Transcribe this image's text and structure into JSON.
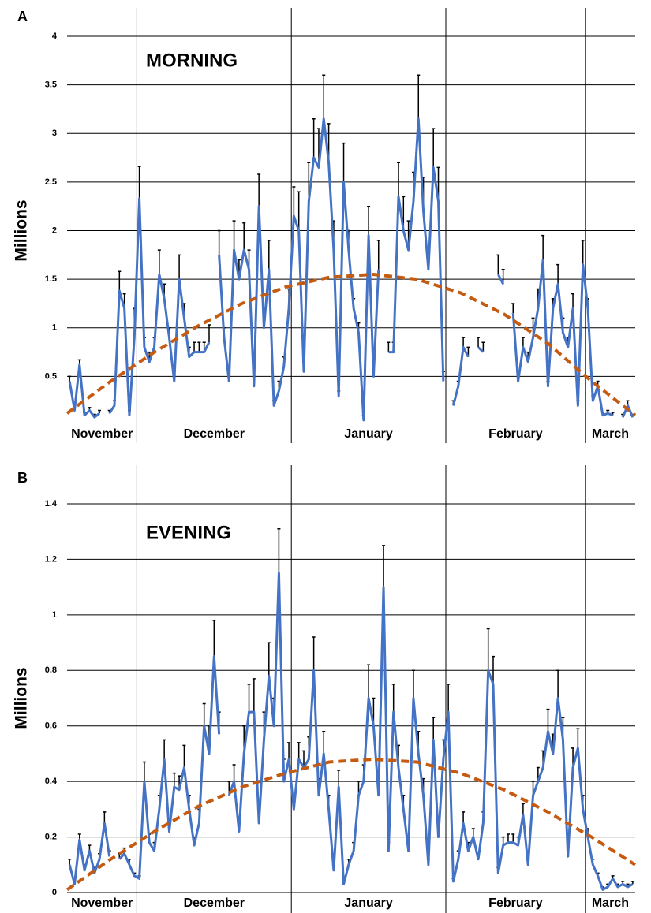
{
  "chart_data": [
    {
      "type": "line",
      "panel_label": "A",
      "title": "MORNING",
      "ylabel": "Millions",
      "ylim": [
        0,
        4
      ],
      "yticks": [
        0.5,
        1,
        1.5,
        2,
        2.5,
        3,
        3.5,
        4
      ],
      "grid": true,
      "color": "#4472c4",
      "months": [
        {
          "name": "November",
          "values": [
            0.45,
            0.15,
            0.62,
            0.1,
            0.15,
            0.08,
            0.12,
            null,
            0.12,
            0.2,
            1.38,
            1.2,
            0.1,
            0.9
          ],
          "errors": [
            0.05,
            0.05,
            0.05,
            0.03,
            0.03,
            0.03,
            0.03,
            null,
            0.03,
            0.05,
            0.2,
            0.15,
            0.05,
            0.3
          ]
        },
        {
          "name": "December",
          "values": [
            2.33,
            0.8,
            0.65,
            0.8,
            1.55,
            1.3,
            0.9,
            0.45,
            1.5,
            1.1,
            0.7,
            0.75,
            0.75,
            0.75,
            0.85,
            null,
            1.75,
            0.9,
            0.45,
            1.8,
            1.5,
            1.8,
            1.6,
            0.4,
            2.25,
            1.0,
            1.6,
            0.2,
            0.35,
            0.6,
            1.2
          ],
          "errors": [
            0.33,
            0.1,
            0.1,
            0.1,
            0.25,
            0.15,
            0.1,
            0.05,
            0.25,
            0.15,
            0.1,
            0.1,
            0.1,
            0.1,
            0.18,
            null,
            0.25,
            0.1,
            0.05,
            0.3,
            0.2,
            0.28,
            0.2,
            0.1,
            0.33,
            0.2,
            0.3,
            0.05,
            0.1,
            0.1,
            0.2
          ]
        },
        {
          "name": "January",
          "values": [
            2.15,
            2.0,
            0.55,
            2.3,
            2.75,
            2.65,
            3.15,
            2.7,
            1.8,
            0.3,
            2.5,
            1.8,
            1.2,
            0.95,
            0.05,
            1.95,
            0.5,
            1.6,
            null,
            0.75,
            0.75,
            2.35,
            2.0,
            1.8,
            2.3,
            3.15,
            2.2,
            1.6,
            2.65,
            2.3,
            0.45
          ],
          "errors": [
            0.3,
            0.4,
            0.1,
            0.4,
            0.4,
            0.4,
            0.45,
            0.4,
            0.3,
            0.05,
            0.4,
            0.2,
            0.1,
            0.1,
            0.05,
            0.3,
            0.1,
            0.3,
            null,
            0.1,
            0.1,
            0.35,
            0.35,
            0.3,
            0.3,
            0.45,
            0.35,
            0.2,
            0.4,
            0.35,
            0.1
          ]
        },
        {
          "name": "February",
          "values": [
            null,
            0.2,
            0.4,
            0.8,
            0.7,
            null,
            0.8,
            0.75,
            null,
            null,
            1.55,
            1.45,
            null,
            1.15,
            0.45,
            0.8,
            0.65,
            0.9,
            1.2,
            1.7,
            0.4,
            1.2,
            1.45,
            0.95,
            0.8,
            1.2,
            0.2,
            1.65
          ],
          "errors": [
            null,
            0.05,
            0.05,
            0.1,
            0.1,
            null,
            0.1,
            0.1,
            null,
            null,
            0.2,
            0.15,
            null,
            0.1,
            0.1,
            0.1,
            0.1,
            0.2,
            0.2,
            0.25,
            0.05,
            0.1,
            0.2,
            0.15,
            0.1,
            0.15,
            0.05,
            0.25
          ]
        },
        {
          "name": "March",
          "values": [
            1.2,
            0.25,
            0.4,
            0.1,
            0.12,
            0.1,
            null,
            0.08,
            0.2,
            0.08
          ],
          "errors": [
            0.1,
            0.05,
            0.05,
            0.03,
            0.03,
            0.03,
            null,
            0.03,
            0.05,
            0.03
          ]
        }
      ],
      "trend": {
        "color": "#c55a11",
        "values": [
          0.12,
          0.45,
          0.75,
          1.02,
          1.25,
          1.42,
          1.52,
          1.55,
          1.5,
          1.36,
          1.14,
          0.84,
          0.45,
          0.1
        ]
      }
    },
    {
      "type": "line",
      "panel_label": "B",
      "title": "EVENING",
      "ylabel": "Millions",
      "ylim": [
        0,
        1.4
      ],
      "yticks": [
        0,
        0.2,
        0.4,
        0.6,
        0.8,
        1,
        1.2,
        1.4
      ],
      "grid": true,
      "color": "#4472c4",
      "months": [
        {
          "name": "November",
          "values": [
            0.1,
            0.03,
            0.19,
            0.08,
            0.15,
            0.07,
            0.12,
            0.25,
            0.13,
            null,
            0.12,
            0.14,
            0.1,
            0.06
          ],
          "errors": [
            0.02,
            0.01,
            0.02,
            0.02,
            0.02,
            0.02,
            0.02,
            0.04,
            0.02,
            null,
            0.02,
            0.02,
            0.02,
            0.01
          ]
        },
        {
          "name": "December",
          "values": [
            0.05,
            0.4,
            0.18,
            0.15,
            0.3,
            0.48,
            0.22,
            0.38,
            0.37,
            0.45,
            0.3,
            0.17,
            0.25,
            0.6,
            0.5,
            0.85,
            0.57,
            null,
            0.35,
            0.4,
            0.22,
            0.5,
            0.65,
            0.65,
            0.25,
            0.55,
            0.78,
            0.6,
            1.15,
            0.4,
            0.48
          ],
          "errors": [
            0.01,
            0.07,
            0.03,
            0.03,
            0.05,
            0.07,
            0.04,
            0.05,
            0.05,
            0.08,
            0.05,
            0.03,
            0.05,
            0.08,
            0.1,
            0.13,
            0.08,
            null,
            0.05,
            0.06,
            0.05,
            0.1,
            0.1,
            0.12,
            0.05,
            0.1,
            0.12,
            0.1,
            0.16,
            0.08,
            0.06
          ]
        },
        {
          "name": "January",
          "values": [
            0.3,
            0.48,
            0.45,
            0.48,
            0.8,
            0.35,
            0.5,
            0.3,
            0.08,
            0.38,
            0.03,
            0.1,
            0.15,
            0.35,
            0.4,
            0.7,
            0.6,
            0.35,
            1.1,
            0.15,
            0.65,
            0.45,
            0.3,
            0.15,
            0.7,
            0.5,
            0.35,
            0.1,
            0.55,
            0.2,
            0.48
          ],
          "errors": [
            0.05,
            0.06,
            0.06,
            0.08,
            0.12,
            0.06,
            0.08,
            0.05,
            0.02,
            0.06,
            0.01,
            0.02,
            0.03,
            0.05,
            0.06,
            0.12,
            0.1,
            0.06,
            0.15,
            0.03,
            0.1,
            0.08,
            0.05,
            0.03,
            0.1,
            0.08,
            0.06,
            0.02,
            0.08,
            0.04,
            0.07
          ]
        },
        {
          "name": "February",
          "values": [
            0.65,
            0.04,
            0.12,
            0.25,
            0.15,
            0.2,
            0.12,
            0.25,
            0.8,
            0.75,
            0.07,
            0.17,
            0.18,
            0.18,
            0.17,
            0.28,
            0.1,
            0.35,
            0.4,
            0.45,
            0.58,
            0.5,
            0.7,
            0.55,
            0.13,
            0.45,
            0.52,
            0.3
          ],
          "errors": [
            0.1,
            0.01,
            0.03,
            0.04,
            0.03,
            0.03,
            0.02,
            0.04,
            0.15,
            0.1,
            0.02,
            0.03,
            0.03,
            0.03,
            0.03,
            0.04,
            0.02,
            0.05,
            0.05,
            0.06,
            0.08,
            0.07,
            0.1,
            0.08,
            0.03,
            0.07,
            0.07,
            0.05
          ]
        },
        {
          "name": "March",
          "values": [
            0.2,
            0.1,
            0.06,
            0.01,
            0.02,
            0.05,
            0.02,
            0.03,
            0.02,
            0.03
          ],
          "errors": [
            0.03,
            0.02,
            0.01,
            0.01,
            0.01,
            0.01,
            0.01,
            0.01,
            0.01,
            0.01
          ]
        }
      ],
      "trend": {
        "color": "#c55a11",
        "values": [
          0.01,
          0.12,
          0.22,
          0.31,
          0.38,
          0.43,
          0.47,
          0.48,
          0.47,
          0.43,
          0.37,
          0.29,
          0.2,
          0.1
        ]
      }
    }
  ]
}
